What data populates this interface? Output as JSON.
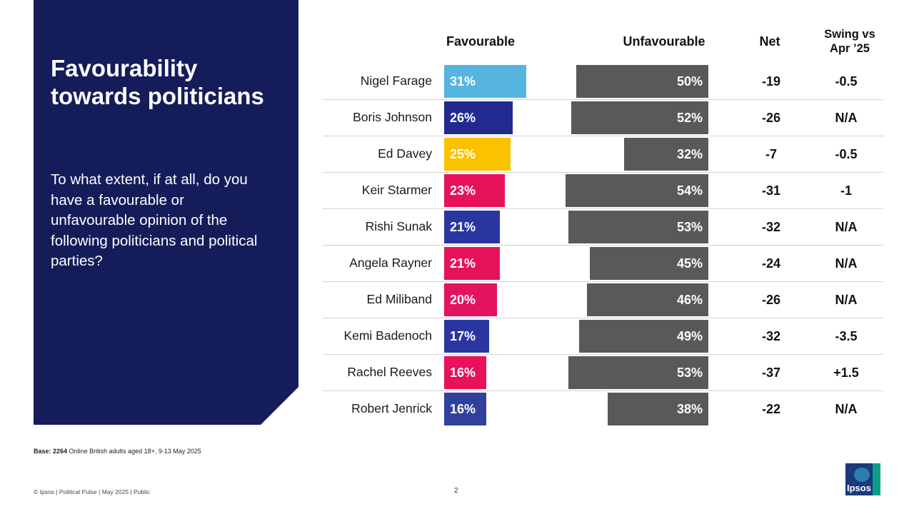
{
  "title": "Favourability towards politicians",
  "question": "To what extent, if at all, do you have a favourable or unfavourable opinion of the following politicians and political parties?",
  "headers": {
    "favourable": "Favourable",
    "unfavourable": "Unfavourable",
    "net": "Net",
    "swing_line1": "Swing vs",
    "swing_line2": "Apr ’25"
  },
  "chart_data": {
    "type": "bar",
    "title": "Favourability towards politicians",
    "categories": [
      "Nigel Farage",
      "Boris Johnson",
      "Ed Davey",
      "Keir Starmer",
      "Rishi Sunak",
      "Angela Rayner",
      "Ed Miliband",
      "Kemi Badenoch",
      "Rachel Reeves",
      "Robert Jenrick"
    ],
    "series": [
      {
        "name": "Favourable",
        "values": [
          31,
          26,
          25,
          23,
          21,
          21,
          20,
          17,
          16,
          16
        ],
        "labels": [
          "31%",
          "26%",
          "25%",
          "23%",
          "21%",
          "21%",
          "20%",
          "17%",
          "16%",
          "16%"
        ],
        "colors": [
          "#56b4e0",
          "#222a8f",
          "#fbc200",
          "#e8115b",
          "#2a36a0",
          "#e8115b",
          "#e3135e",
          "#2a36a0",
          "#e8115b",
          "#30409c"
        ]
      },
      {
        "name": "Unfavourable",
        "values": [
          50,
          52,
          32,
          54,
          53,
          45,
          46,
          49,
          53,
          38
        ],
        "labels": [
          "50%",
          "52%",
          "32%",
          "54%",
          "53%",
          "45%",
          "46%",
          "49%",
          "53%",
          "38%"
        ],
        "color": "#595959"
      }
    ],
    "net": [
      "-19",
      "-26",
      "-7",
      "-31",
      "-32",
      "-24",
      "-26",
      "-32",
      "-37",
      "-22"
    ],
    "swing": [
      "-0.5",
      "N/A",
      "-0.5",
      "-1",
      "N/A",
      "N/A",
      "N/A",
      "-3.5",
      "+1.5",
      "N/A"
    ]
  },
  "footnote": {
    "base_label": "Base: 2264",
    "base_text": "Online British adults aged 18+,  9-13 May 2025"
  },
  "footer": "© Ipsos | Political Pulse | May 2025 | Public",
  "page_number": "2",
  "logo_text": "Ipsos"
}
